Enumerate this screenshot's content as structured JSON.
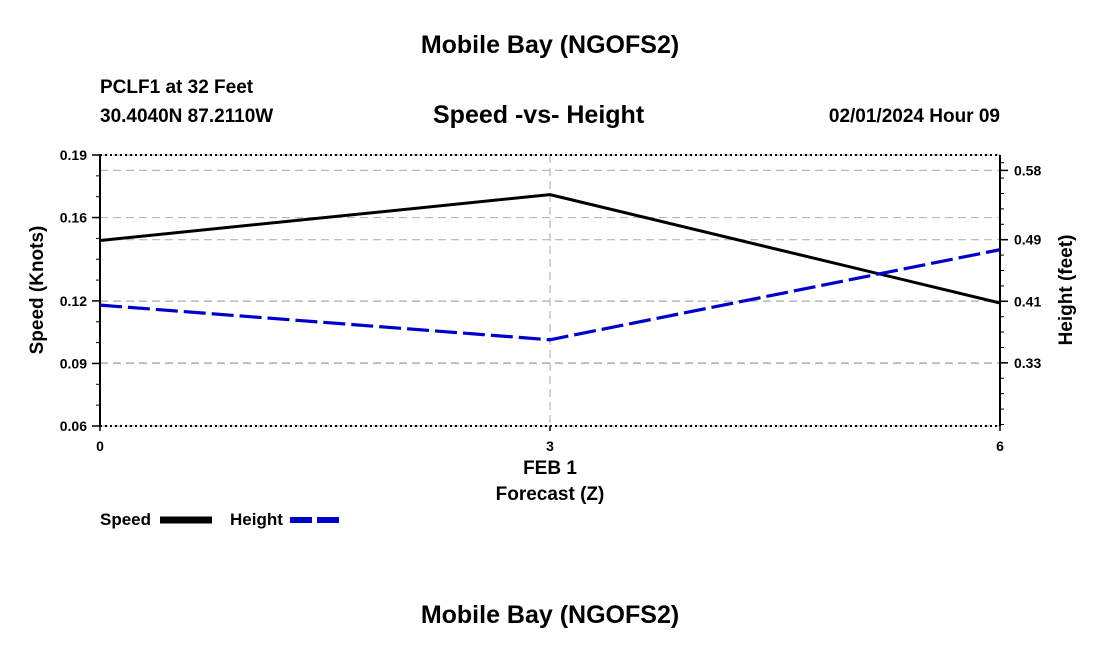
{
  "page": {
    "title_top": "Mobile Bay (NGOFS2)",
    "title_bottom": "Mobile Bay (NGOFS2)",
    "station": "PCLF1 at 32 Feet",
    "coords": "30.4040N  87.2110W",
    "datetime": "02/01/2024 Hour 09"
  },
  "chart_data": {
    "type": "line",
    "title": "Speed -vs- Height",
    "xlabel": "Forecast (Z)",
    "xdate_label": "FEB 1",
    "x": [
      0,
      3,
      6
    ],
    "xticks": [
      0,
      3,
      6
    ],
    "xtick_labels": [
      "0",
      "3",
      "6"
    ],
    "xlim": [
      0,
      6
    ],
    "y_left": {
      "label": "Speed (Knots)",
      "lim": [
        0.06,
        0.19
      ],
      "ticks": [
        0.06,
        0.09,
        0.12,
        0.16,
        0.19
      ],
      "tick_labels": [
        "0.06",
        "0.09",
        "0.12",
        "0.16",
        "0.19"
      ]
    },
    "y_right": {
      "label": "Height (feet)",
      "lim": [
        0.248,
        0.6
      ],
      "ticks": [
        0.33,
        0.41,
        0.49,
        0.58
      ],
      "tick_labels": [
        "0.33",
        "0.41",
        "0.49",
        "0.58"
      ]
    },
    "series": [
      {
        "name": "Speed",
        "axis": "left",
        "values": [
          0.149,
          0.171,
          0.119
        ],
        "color": "#000000",
        "style": "solid"
      },
      {
        "name": "Height",
        "axis": "right",
        "values": [
          0.405,
          0.36,
          0.477
        ],
        "color": "#0000cc",
        "style": "dashed"
      }
    ],
    "legend": [
      "Speed",
      "Height"
    ],
    "grid": true
  }
}
